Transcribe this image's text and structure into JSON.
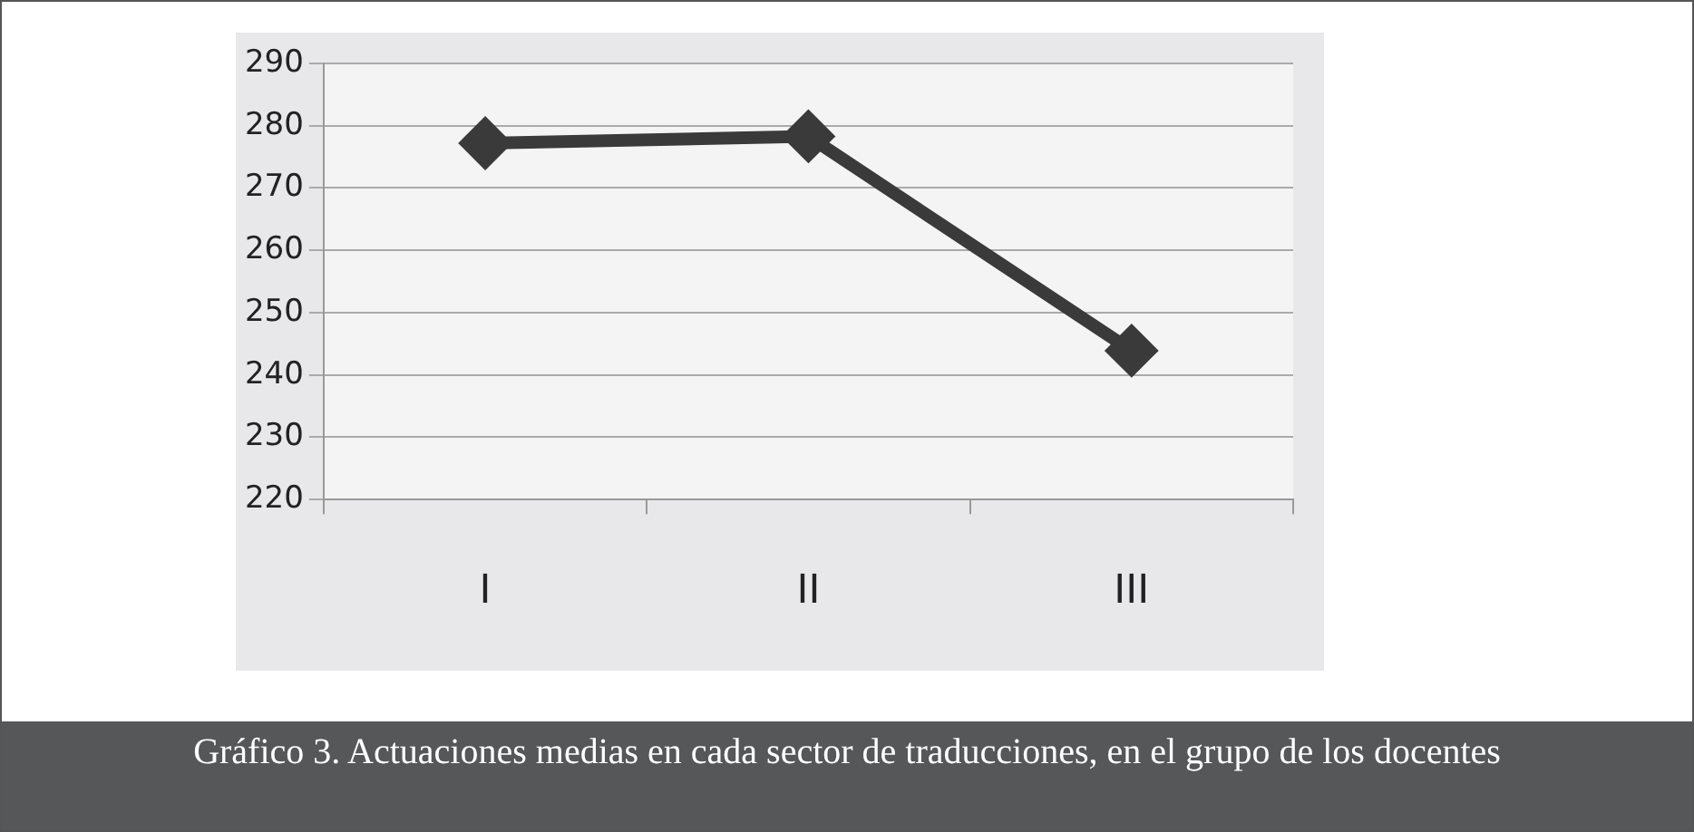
{
  "chart_data": {
    "type": "line",
    "title": "Gráfico 3. Actuaciones medias en cada sector de traducciones, en el grupo de los docentes",
    "categories": [
      "I",
      "II",
      "III"
    ],
    "series": [
      {
        "color": "#3a3a3a",
        "values": [
          277.2,
          278.3,
          243.9
        ]
      }
    ],
    "ylim": [
      220,
      290
    ],
    "yticks": [
      220,
      230,
      240,
      250,
      260,
      270,
      280,
      290
    ],
    "grid": "y",
    "legend": false,
    "marker": "diamond",
    "line_style": "solid"
  }
}
